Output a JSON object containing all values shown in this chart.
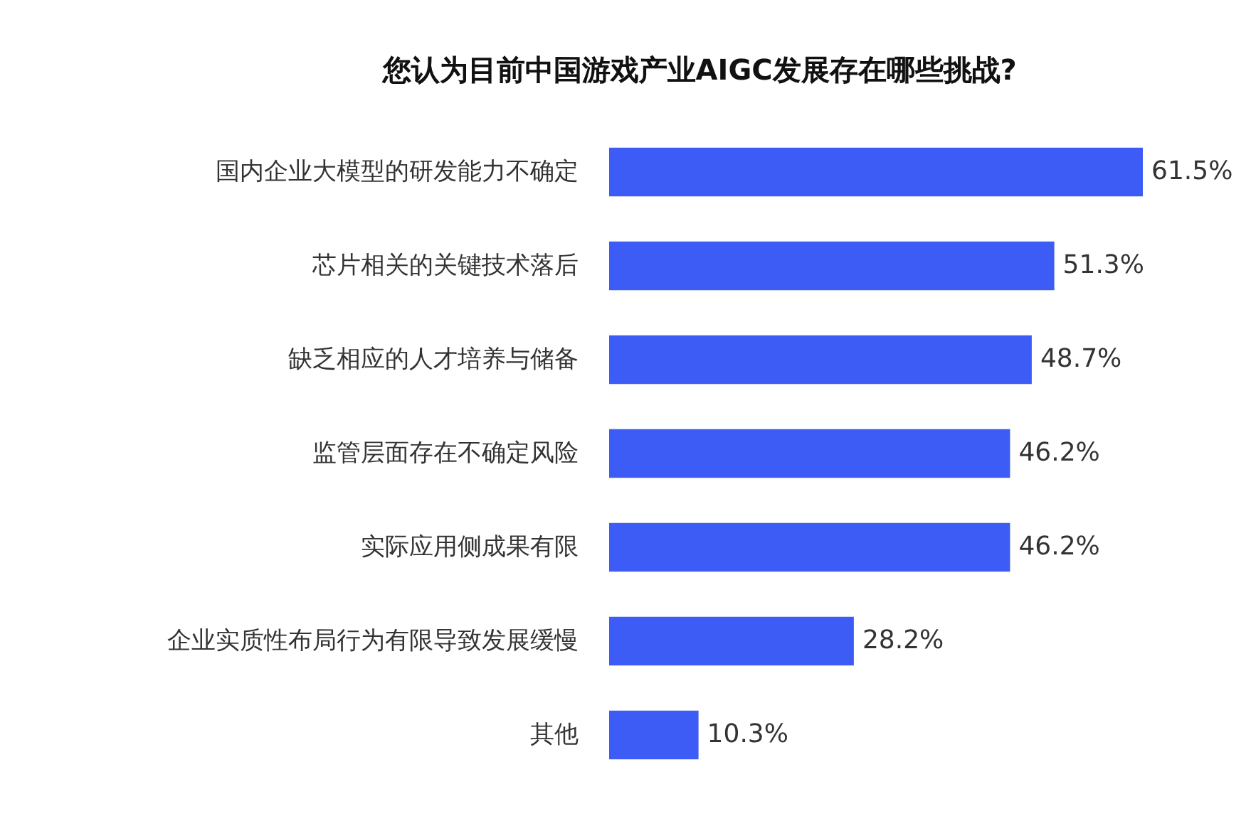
{
  "chart_data": {
    "type": "bar",
    "orientation": "horizontal",
    "title": "您认为目前中国游戏产业AIGC发展存在哪些挑战?",
    "categories": [
      "国内企业大模型的研发能力不确定",
      "芯片相关的关键技术落后",
      "缺乏相应的人才培养与储备",
      "监管层面存在不确定风险",
      "实际应用侧成果有限",
      "企业实质性布局行为有限导致发展缓慢",
      "其他"
    ],
    "values": [
      61.5,
      51.3,
      48.7,
      46.2,
      46.2,
      28.2,
      10.3
    ],
    "value_labels": [
      "61.5%",
      "51.3%",
      "48.7%",
      "46.2%",
      "46.2%",
      "28.2%",
      "10.3%"
    ],
    "color": "#3d5cf5"
  }
}
